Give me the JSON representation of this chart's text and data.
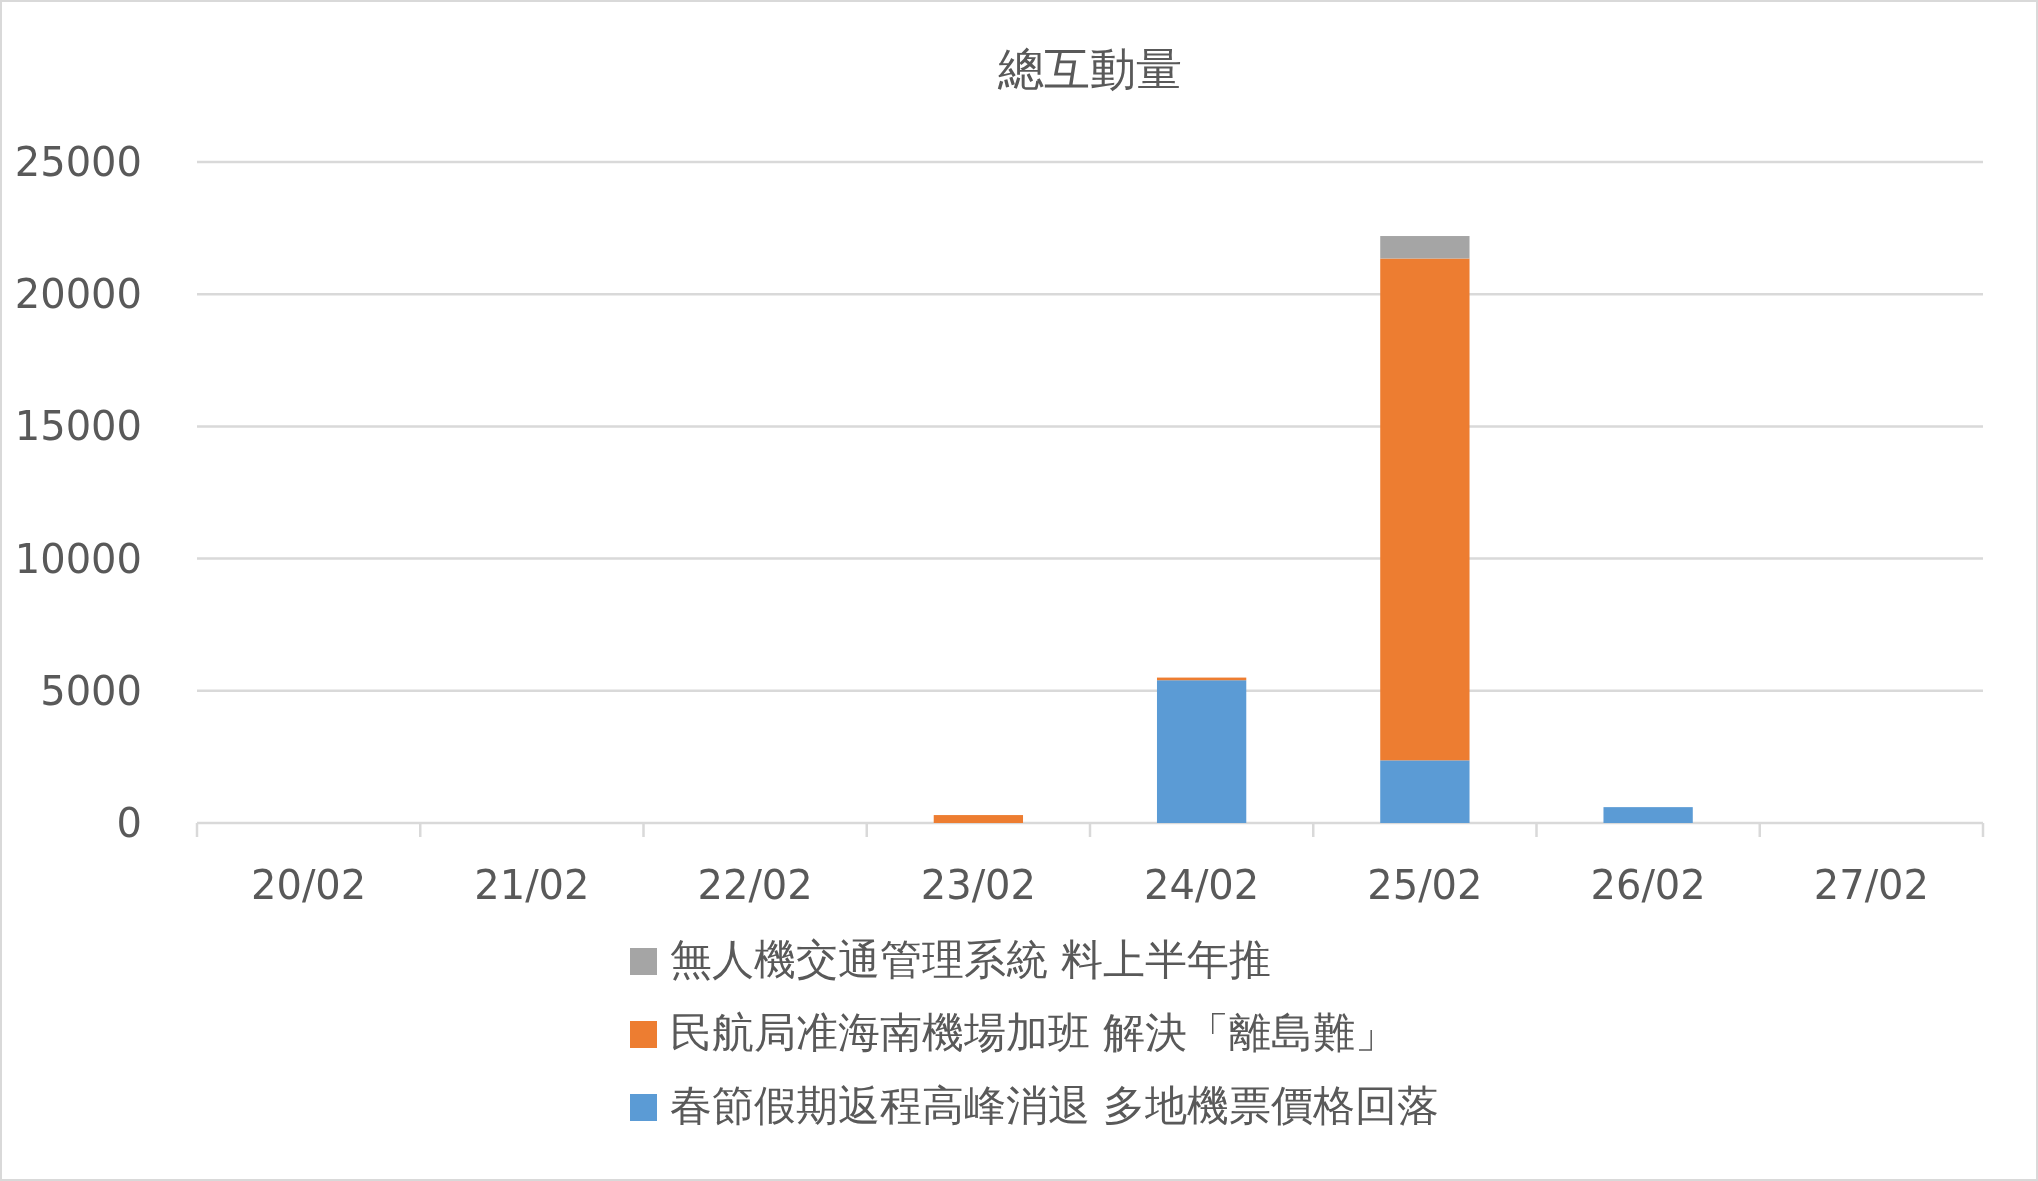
{
  "chart_data": {
    "type": "bar",
    "stacked": true,
    "title": "總互動量",
    "categories": [
      "20/02",
      "21/02",
      "22/02",
      "23/02",
      "24/02",
      "25/02",
      "26/02",
      "27/02"
    ],
    "series": [
      {
        "name": "春節假期返程高峰消退 多地機票價格回落",
        "color": "#5b9bd5",
        "values": [
          0,
          0,
          0,
          0,
          5400,
          2370,
          600,
          0
        ]
      },
      {
        "name": "民航局准海南機場加班 解決「離島難」",
        "color": "#ed7d31",
        "values": [
          0,
          0,
          0,
          300,
          100,
          18980,
          0,
          0
        ]
      },
      {
        "name": "無人機交通管理系統 料上半年推",
        "color": "#a5a5a5",
        "values": [
          0,
          0,
          0,
          0,
          0,
          850,
          0,
          0
        ]
      }
    ],
    "ylim": [
      0,
      25000
    ],
    "yticks": [
      0,
      5000,
      10000,
      15000,
      20000,
      25000
    ],
    "grid": "y",
    "legend": "bottom"
  }
}
